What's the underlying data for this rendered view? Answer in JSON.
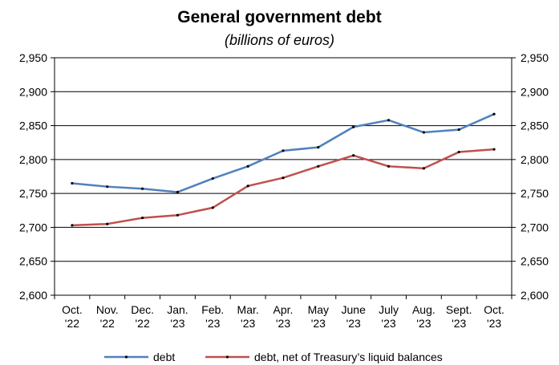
{
  "chart_data": {
    "type": "line",
    "title": "General government debt",
    "subtitle": "(billions of euros)",
    "categories": [
      [
        "Oct.",
        "'22"
      ],
      [
        "Nov.",
        "'22"
      ],
      [
        "Dec.",
        "'22"
      ],
      [
        "Jan.",
        "'23"
      ],
      [
        "Feb.",
        "'23"
      ],
      [
        "Mar.",
        "'23"
      ],
      [
        "Apr.",
        "'23"
      ],
      [
        "May",
        "'23"
      ],
      [
        "June",
        "'23"
      ],
      [
        "July",
        "'23"
      ],
      [
        "Aug.",
        "'23"
      ],
      [
        "Sept.",
        "'23"
      ],
      [
        "Oct.",
        "'23"
      ]
    ],
    "ylim": [
      2600,
      2950
    ],
    "yticks": [
      "2,600",
      "2,650",
      "2,700",
      "2,750",
      "2,800",
      "2,850",
      "2,900",
      "2,950"
    ],
    "ytick_values": [
      2600,
      2650,
      2700,
      2750,
      2800,
      2850,
      2900,
      2950
    ],
    "grid": true,
    "legend_position": "bottom",
    "series": [
      {
        "name": "debt",
        "color": "#4f81bd",
        "values": [
          2765,
          2760,
          2757,
          2752,
          2772,
          2790,
          2813,
          2818,
          2848,
          2858,
          2840,
          2844,
          2867
        ]
      },
      {
        "name": "debt, net of Treasury’s liquid balances",
        "color": "#c0504d",
        "values": [
          2703,
          2705,
          2714,
          2718,
          2729,
          2761,
          2773,
          2790,
          2806,
          2790,
          2787,
          2811,
          2815
        ]
      }
    ]
  }
}
